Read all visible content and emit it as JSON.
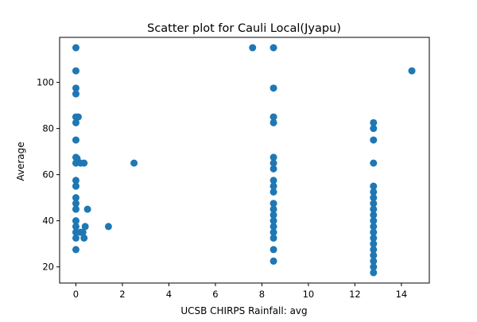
{
  "chart_data": {
    "type": "scatter",
    "title": "Scatter plot for Cauli Local(Jyapu)",
    "xlabel": "UCSB CHIRPS Rainfall: avg",
    "ylabel": "Average",
    "xlim": [
      -0.7,
      15.2
    ],
    "ylim": [
      13,
      119.5
    ],
    "xticks": [
      0,
      2,
      4,
      6,
      8,
      10,
      12,
      14
    ],
    "yticks": [
      20,
      40,
      60,
      80,
      100
    ],
    "grid": false,
    "marker_color": "#1f77b4",
    "points": [
      {
        "x": 0,
        "y": 115
      },
      {
        "x": 0,
        "y": 105
      },
      {
        "x": 0,
        "y": 97.5
      },
      {
        "x": 0,
        "y": 95
      },
      {
        "x": 0,
        "y": 85
      },
      {
        "x": 0,
        "y": 82.5
      },
      {
        "x": 0.1,
        "y": 85
      },
      {
        "x": 0,
        "y": 75
      },
      {
        "x": 0,
        "y": 67.5
      },
      {
        "x": 0.05,
        "y": 67
      },
      {
        "x": 0,
        "y": 65
      },
      {
        "x": 0.2,
        "y": 65
      },
      {
        "x": 0.35,
        "y": 65
      },
      {
        "x": 0,
        "y": 57.5
      },
      {
        "x": 0,
        "y": 55
      },
      {
        "x": 0,
        "y": 50
      },
      {
        "x": 0,
        "y": 47.5
      },
      {
        "x": 0,
        "y": 45
      },
      {
        "x": 0.5,
        "y": 45
      },
      {
        "x": 0,
        "y": 40
      },
      {
        "x": 0,
        "y": 37.5
      },
      {
        "x": 0,
        "y": 35
      },
      {
        "x": 0,
        "y": 32.5
      },
      {
        "x": 0.2,
        "y": 35
      },
      {
        "x": 0.3,
        "y": 35
      },
      {
        "x": 0.4,
        "y": 37.5
      },
      {
        "x": 0.35,
        "y": 32.5
      },
      {
        "x": 0,
        "y": 27.5
      },
      {
        "x": 1.4,
        "y": 37.5
      },
      {
        "x": 2.5,
        "y": 65
      },
      {
        "x": 7.6,
        "y": 115
      },
      {
        "x": 8.5,
        "y": 115
      },
      {
        "x": 8.5,
        "y": 97.5
      },
      {
        "x": 8.5,
        "y": 85
      },
      {
        "x": 8.5,
        "y": 82.5
      },
      {
        "x": 8.5,
        "y": 67.5
      },
      {
        "x": 8.5,
        "y": 65
      },
      {
        "x": 8.5,
        "y": 62.5
      },
      {
        "x": 8.5,
        "y": 57.5
      },
      {
        "x": 8.5,
        "y": 55
      },
      {
        "x": 8.5,
        "y": 52.5
      },
      {
        "x": 8.5,
        "y": 47.5
      },
      {
        "x": 8.5,
        "y": 45
      },
      {
        "x": 8.5,
        "y": 42.5
      },
      {
        "x": 8.5,
        "y": 40
      },
      {
        "x": 8.5,
        "y": 37.5
      },
      {
        "x": 8.5,
        "y": 35
      },
      {
        "x": 8.5,
        "y": 32.5
      },
      {
        "x": 8.5,
        "y": 27.5
      },
      {
        "x": 8.5,
        "y": 22.5
      },
      {
        "x": 12.8,
        "y": 82.5
      },
      {
        "x": 12.8,
        "y": 80
      },
      {
        "x": 12.8,
        "y": 75
      },
      {
        "x": 12.8,
        "y": 65
      },
      {
        "x": 12.8,
        "y": 55
      },
      {
        "x": 12.8,
        "y": 52.5
      },
      {
        "x": 12.8,
        "y": 50
      },
      {
        "x": 12.8,
        "y": 47.5
      },
      {
        "x": 12.8,
        "y": 45
      },
      {
        "x": 12.8,
        "y": 42.5
      },
      {
        "x": 12.8,
        "y": 40
      },
      {
        "x": 12.8,
        "y": 37.5
      },
      {
        "x": 12.8,
        "y": 35
      },
      {
        "x": 12.8,
        "y": 32.5
      },
      {
        "x": 12.8,
        "y": 30
      },
      {
        "x": 12.8,
        "y": 27.5
      },
      {
        "x": 12.8,
        "y": 25
      },
      {
        "x": 12.8,
        "y": 22.5
      },
      {
        "x": 12.8,
        "y": 20
      },
      {
        "x": 12.8,
        "y": 17.5
      },
      {
        "x": 14.45,
        "y": 105
      }
    ]
  }
}
